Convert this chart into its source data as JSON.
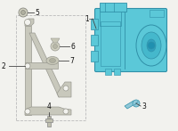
{
  "bg_color": "#f2f2ee",
  "bracket_color": "#c8c8bc",
  "bracket_edge": "#999990",
  "abs_color": "#5bc8d8",
  "abs_outline": "#3090a8",
  "line_color": "#444444",
  "label_color": "#111111",
  "border_color": "#bbbbbb",
  "figsize": [
    2.0,
    1.47
  ],
  "dpi": 100,
  "xlim": [
    0,
    200
  ],
  "ylim": [
    0,
    147
  ]
}
